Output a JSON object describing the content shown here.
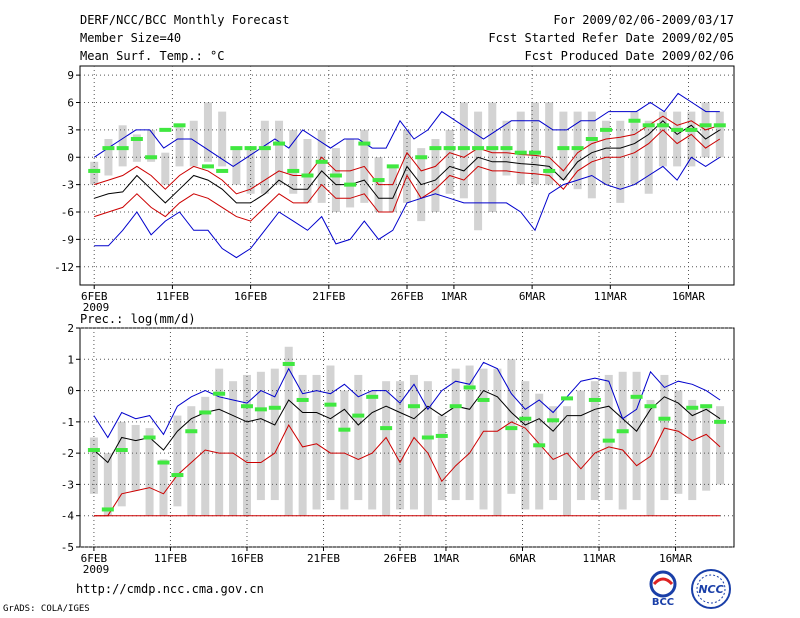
{
  "header": {
    "title": "DERF/NCC/BCC Monthly Forecast",
    "member_size": "Member Size=40",
    "variable": "Mean Surf. Temp.: °C",
    "period": "For 2009/02/06-2009/03/17",
    "refer_date": "Fcst Started Refer Date 2009/02/05",
    "produced_date": "Fcst Produced Date 2009/02/06"
  },
  "footer": {
    "url": "http://cmdp.ncc.cma.gov.cn",
    "credit": "GrADS: COLA/IGES",
    "logo_bcc": "BCC",
    "logo_ncc": "NCC"
  },
  "colors": {
    "box": "#d3d3d3",
    "observed": "#40e840",
    "mean": "#000000",
    "inner": "#cc0000",
    "outer": "#0000cc",
    "grid": "#555555"
  },
  "x_tick_labels": [
    "6FEB",
    "11FEB",
    "16FEB",
    "21FEB",
    "26FEB",
    "1MAR",
    "6MAR",
    "11MAR",
    "16MAR"
  ],
  "x_tick_days": [
    0,
    5,
    10,
    15,
    20,
    23,
    28,
    33,
    38
  ],
  "year_label": "2009",
  "chart_data": [
    {
      "type": "line",
      "title": "Mean Surf. Temp.: °C",
      "ylim": [
        -14,
        10
      ],
      "yticks": [
        9,
        6,
        3,
        0,
        -3,
        -6,
        -9,
        -12
      ],
      "grid": true,
      "days": 40,
      "series": [
        {
          "name": "ensemble mean",
          "color": "#000000",
          "values": [
            -4.5,
            -4,
            -3.8,
            -2,
            -3.5,
            -5,
            -3.5,
            -2,
            -2.5,
            -3.5,
            -5,
            -5,
            -4,
            -2.5,
            -3.5,
            -3.5,
            -1.5,
            -3,
            -3,
            -2.5,
            -4.5,
            -4.5,
            -1,
            -3,
            -2.5,
            -1,
            -1.5,
            0,
            -0.5,
            -0.5,
            -0.7,
            -0.8,
            -1,
            -2.5,
            -0.5,
            0.5,
            1,
            1,
            1.5,
            2.5,
            4,
            2.5,
            3.5,
            2,
            3
          ]
        },
        {
          "name": "upper percentile",
          "color": "#cc0000",
          "values": [
            -3,
            -2.5,
            -2,
            -1,
            -2,
            -3.5,
            -2,
            -1,
            -1.5,
            -2.5,
            -4,
            -3.5,
            -2.5,
            -1.5,
            -2,
            -2,
            0,
            -1.5,
            -1.5,
            -1,
            -3,
            -3,
            0.5,
            -1.5,
            -1,
            0.5,
            0,
            1,
            0.5,
            0.5,
            0.3,
            0.2,
            0,
            -1.5,
            0.5,
            1.5,
            2,
            2.2,
            2.5,
            3.5,
            4.5,
            3.5,
            4,
            3,
            3.5
          ]
        },
        {
          "name": "lower percentile",
          "color": "#cc0000",
          "values": [
            -6.5,
            -6,
            -5.5,
            -4,
            -5.5,
            -6.5,
            -5,
            -4,
            -4.5,
            -5.5,
            -6.5,
            -7,
            -5.5,
            -4,
            -5,
            -5,
            -3,
            -4.5,
            -4.5,
            -4,
            -6,
            -6,
            -2,
            -4.5,
            -3.5,
            -2,
            -2.5,
            -1,
            -1.5,
            -1.5,
            -1.7,
            -1.8,
            -2,
            -3.5,
            -1.5,
            -0.5,
            0,
            0,
            0.5,
            1.5,
            3,
            1.5,
            2.5,
            1,
            2
          ]
        },
        {
          "name": "max",
          "color": "#0000cc",
          "values": [
            0,
            1,
            2,
            3,
            3,
            1,
            2,
            2,
            1,
            0,
            -1,
            0,
            1,
            2,
            1,
            3,
            2,
            1,
            2,
            2,
            1,
            1,
            4,
            2,
            3,
            5,
            4,
            3,
            2,
            3,
            4,
            4,
            4,
            3,
            3,
            4,
            4,
            5,
            5,
            5,
            6,
            5,
            7,
            6,
            5,
            5
          ]
        },
        {
          "name": "min",
          "color": "#0000cc",
          "values": [
            -9.7,
            -9.7,
            -8,
            -6,
            -8.5,
            -7,
            -6,
            -8,
            -8,
            -10,
            -11,
            -10,
            -8,
            -6,
            -7,
            -8,
            -6.5,
            -9.5,
            -9,
            -7,
            -9,
            -8,
            -5,
            -4.5,
            -4,
            -4.5,
            -5,
            -5,
            -5,
            -5,
            -6,
            -8,
            -4,
            -3,
            -2.5,
            -2,
            -3,
            -3.5,
            -3,
            -2,
            -1,
            -2.5,
            0,
            -1,
            0
          ]
        },
        {
          "name": "observed",
          "color": "#40e840",
          "values": [
            -1.5,
            1,
            1,
            2,
            0,
            3,
            3.5,
            -1,
            -1.5,
            1,
            1,
            1,
            1.5,
            -1.5,
            -2,
            -0.5,
            -2,
            -3,
            1.5,
            -2.5,
            -1,
            0,
            1,
            1,
            1,
            1,
            1,
            1,
            0.5,
            0.5,
            -1.5,
            1,
            1,
            2,
            3,
            4,
            3.5,
            3.5,
            3,
            3,
            3.5,
            3.5
          ]
        }
      ],
      "box_ranges": [
        [
          -3,
          -0.5
        ],
        [
          -2,
          2
        ],
        [
          -1,
          3.5
        ],
        [
          -0.5,
          2.5
        ],
        [
          -0.5,
          3
        ],
        [
          -3,
          0.5
        ],
        [
          -1,
          3.5
        ],
        [
          -1,
          4
        ],
        [
          -0.5,
          6
        ],
        [
          -1,
          5
        ],
        [
          -3,
          1
        ],
        [
          -4,
          1
        ],
        [
          -4,
          4
        ],
        [
          -3,
          4
        ],
        [
          -4,
          3
        ],
        [
          -5,
          2
        ],
        [
          -5,
          3
        ],
        [
          -6,
          1
        ],
        [
          -5.5,
          2
        ],
        [
          -5,
          3
        ],
        [
          -6,
          0
        ],
        [
          -6,
          -1
        ],
        [
          -5,
          3
        ],
        [
          -7,
          1
        ],
        [
          -6,
          2
        ],
        [
          -4,
          3
        ],
        [
          -4.5,
          6
        ],
        [
          -8,
          5
        ],
        [
          -6,
          6
        ],
        [
          -2,
          4
        ],
        [
          -3,
          5
        ],
        [
          -3,
          6
        ],
        [
          -3,
          6
        ],
        [
          -2.5,
          5
        ],
        [
          -3.5,
          5
        ],
        [
          -4.5,
          5
        ],
        [
          -3,
          4
        ],
        [
          -5,
          4
        ],
        [
          -3,
          5
        ],
        [
          -4,
          4
        ],
        [
          -1,
          5
        ],
        [
          -1,
          5
        ],
        [
          -1,
          5
        ],
        [
          0,
          6
        ],
        [
          0,
          5
        ]
      ]
    },
    {
      "type": "line",
      "title": "Prec.: log(mm/d)",
      "ylim": [
        -5,
        2
      ],
      "yticks": [
        2,
        1,
        0,
        -1,
        -2,
        -3,
        -4,
        -5
      ],
      "grid": true,
      "days": 40,
      "series": [
        {
          "name": "ensemble mean",
          "color": "#000000",
          "values": [
            -1.9,
            -2.3,
            -1.5,
            -1.6,
            -1.5,
            -1.9,
            -1.3,
            -0.9,
            -0.7,
            -0.6,
            -0.8,
            -1.0,
            -0.9,
            -1.1,
            -0.3,
            -0.7,
            -0.7,
            -0.9,
            -0.6,
            -1.1,
            -0.7,
            -0.5,
            -0.7,
            -0.9,
            -0.5,
            -0.8,
            -0.5,
            -0.6,
            0,
            -0.2,
            -0.7,
            -1.1,
            -0.9,
            -1.3,
            -0.8,
            -0.8,
            -0.6,
            -0.5,
            -0.9,
            -1.3,
            -0.6,
            -0.2,
            -0.4,
            -0.8,
            -0.6,
            -0.9
          ]
        },
        {
          "name": "upper percentile",
          "color": "#cc0000",
          "values": [
            -4.0,
            -4.0,
            -3.3,
            -3.2,
            -3.1,
            -3.3,
            -2.7,
            -2.3,
            -1.9,
            -2.0,
            -2.0,
            -2.3,
            -2.3,
            -2.0,
            -1.1,
            -1.8,
            -1.7,
            -2.0,
            -2.0,
            -2.2,
            -2.0,
            -1.5,
            -2.3,
            -1.5,
            -2.0,
            -2.9,
            -2.4,
            -2.0,
            -1.3,
            -1.3,
            -1.0,
            -1.2,
            -1.7,
            -2.2,
            -2.0,
            -2.5,
            -2.0,
            -1.8,
            -1.9,
            -2.4,
            -2.1,
            -1.2,
            -1.3,
            -1.6,
            -1.4,
            -1.8
          ]
        },
        {
          "name": "max",
          "color": "#0000cc",
          "values": [
            -0.8,
            -1.5,
            -0.7,
            -0.9,
            -0.8,
            -1.4,
            -0.5,
            -0.2,
            0,
            -0.2,
            -0.3,
            -0.4,
            0,
            -0.2,
            0.7,
            -0.1,
            0,
            -0.1,
            0.2,
            -0.2,
            0,
            0,
            -0.4,
            0.2,
            -0.6,
            0,
            0.3,
            0.2,
            0.9,
            0.7,
            -0.1,
            -0.6,
            -0.3,
            -0.7,
            -0.2,
            0.3,
            0.4,
            0.3,
            -0.9,
            -0.6,
            0.6,
            0.1,
            0.3,
            0.2,
            0,
            -0.3
          ]
        },
        {
          "name": "observed",
          "color": "#40e840",
          "values": [
            -1.9,
            -3.8,
            -1.9,
            -1.5,
            -2.3,
            -2.7,
            -1.3,
            -0.7,
            -0.1,
            -0.5,
            -0.6,
            -0.55,
            0.85,
            -0.3,
            -0.45,
            -1.25,
            -0.8,
            -0.2,
            -1.2,
            -0.5,
            -1.5,
            -1.45,
            -0.5,
            0.1,
            -0.3,
            -1.2,
            -0.9,
            -1.75,
            -0.95,
            -0.25,
            -0.3,
            -1.6,
            -1.3,
            -0.2,
            -0.5,
            -0.9,
            -0.55,
            -0.5,
            -1.0
          ]
        }
      ],
      "floor_value": -4.0,
      "box_ranges": [
        [
          -3.3,
          -1.5
        ],
        [
          -4,
          -2
        ],
        [
          -3.7,
          -1
        ],
        [
          -3.2,
          -1.1
        ],
        [
          -4,
          -1.2
        ],
        [
          -4,
          -2.2
        ],
        [
          -3.7,
          -0.8
        ],
        [
          -4,
          -0.5
        ],
        [
          -4,
          -0.2
        ],
        [
          -4,
          0.7
        ],
        [
          -4,
          0.3
        ],
        [
          -4,
          0.5
        ],
        [
          -3.5,
          0.6
        ],
        [
          -3.5,
          0.7
        ],
        [
          -4,
          1.4
        ],
        [
          -4,
          0.5
        ],
        [
          -3.8,
          0.5
        ],
        [
          -3.5,
          0.8
        ],
        [
          -3.8,
          0
        ],
        [
          -3.5,
          0.5
        ],
        [
          -3.8,
          0
        ],
        [
          -4,
          0.3
        ],
        [
          -3.8,
          0.3
        ],
        [
          -3.8,
          0.5
        ],
        [
          -4,
          0.3
        ],
        [
          -3.5,
          -0.8
        ],
        [
          -3.5,
          0.7
        ],
        [
          -3.5,
          0.8
        ],
        [
          -3.8,
          0.7
        ],
        [
          -4,
          0.7
        ],
        [
          -3.3,
          1
        ],
        [
          -3.8,
          0.3
        ],
        [
          -3.8,
          -0.1
        ],
        [
          -3.5,
          -0.5
        ],
        [
          -4,
          -0.5
        ],
        [
          -3.5,
          0
        ],
        [
          -3.5,
          0.3
        ],
        [
          -3.5,
          0.5
        ],
        [
          -3.8,
          0.6
        ],
        [
          -3.5,
          0.6
        ],
        [
          -4,
          -0.3
        ],
        [
          -3.5,
          0.5
        ],
        [
          -3.3,
          0
        ],
        [
          -3.5,
          -0.3
        ],
        [
          -3.2,
          -0.5
        ],
        [
          -3,
          -0.5
        ]
      ]
    }
  ]
}
